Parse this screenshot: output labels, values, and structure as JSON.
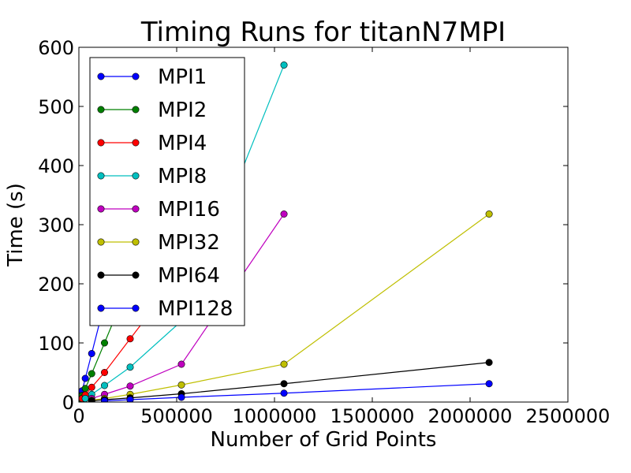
{
  "chart_data": {
    "type": "line",
    "title": "Timing Runs for titanN7MPI",
    "xlabel": "Number of Grid Points",
    "ylabel": "Time (s)",
    "xlim": [
      0,
      2500000
    ],
    "ylim": [
      0,
      600
    ],
    "xticks": [
      0,
      500000,
      1000000,
      1500000,
      2000000,
      2500000
    ],
    "xtick_labels": [
      "0",
      "500000",
      "1000000",
      "1500000",
      "2000000",
      "2500000"
    ],
    "yticks": [
      0,
      100,
      200,
      300,
      400,
      500,
      600
    ],
    "ytick_labels": [
      "0",
      "100",
      "200",
      "300",
      "400",
      "500",
      "600"
    ],
    "grid": false,
    "legend_position": "upper-left",
    "series": [
      {
        "name": "MPI1",
        "color": "#0000ff",
        "points": [
          [
            4096,
            4
          ],
          [
            8192,
            9
          ],
          [
            16384,
            19
          ],
          [
            32768,
            40
          ],
          [
            65536,
            82
          ],
          [
            131072,
            167
          ]
        ]
      },
      {
        "name": "MPI2",
        "color": "#008000",
        "points": [
          [
            8192,
            5
          ],
          [
            16384,
            11
          ],
          [
            32768,
            23
          ],
          [
            65536,
            48
          ],
          [
            131072,
            100
          ],
          [
            262144,
            205
          ]
        ]
      },
      {
        "name": "MPI4",
        "color": "#ff0000",
        "points": [
          [
            16384,
            6
          ],
          [
            32768,
            12
          ],
          [
            65536,
            25
          ],
          [
            131072,
            50
          ],
          [
            262144,
            107
          ],
          [
            524288,
            220
          ]
        ]
      },
      {
        "name": "MPI8",
        "color": "#00bfbf",
        "points": [
          [
            32768,
            6
          ],
          [
            65536,
            13
          ],
          [
            131072,
            28
          ],
          [
            262144,
            59
          ],
          [
            524288,
            137
          ],
          [
            1048576,
            570
          ]
        ]
      },
      {
        "name": "MPI16",
        "color": "#bf00bf",
        "points": [
          [
            65536,
            6
          ],
          [
            131072,
            13
          ],
          [
            262144,
            27
          ],
          [
            524288,
            64
          ],
          [
            1048576,
            318
          ]
        ]
      },
      {
        "name": "MPI32",
        "color": "#bfbf00",
        "points": [
          [
            65536,
            3
          ],
          [
            131072,
            6
          ],
          [
            262144,
            13
          ],
          [
            524288,
            29
          ],
          [
            1048576,
            64
          ],
          [
            2097152,
            318
          ]
        ]
      },
      {
        "name": "MPI64",
        "color": "#000000",
        "points": [
          [
            65536,
            2
          ],
          [
            131072,
            4
          ],
          [
            262144,
            7
          ],
          [
            524288,
            14
          ],
          [
            1048576,
            31
          ],
          [
            2097152,
            67
          ]
        ]
      },
      {
        "name": "MPI128",
        "color": "#0000ff",
        "points": [
          [
            131072,
            2
          ],
          [
            262144,
            4
          ],
          [
            524288,
            8
          ],
          [
            1048576,
            15
          ],
          [
            2097152,
            31
          ]
        ]
      }
    ]
  }
}
